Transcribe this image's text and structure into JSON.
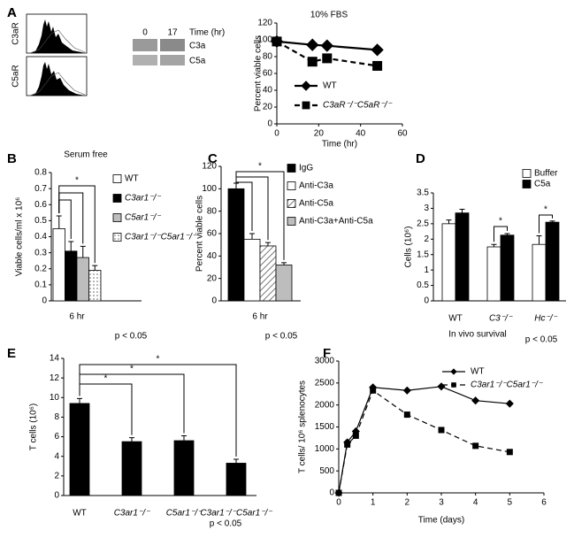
{
  "panel_a": {
    "panel": "A",
    "flow_labels": [
      "C3aR",
      "C5aR"
    ],
    "blot_times": [
      "0",
      "17"
    ],
    "blot_time_label": "Time (hr)",
    "blot_rows": [
      "C3a",
      "C5a"
    ]
  },
  "chart_data": [
    {
      "type": "line",
      "panel": "A",
      "title": "10% FBS",
      "x_label": "Time (hr)",
      "y_label": "Percent viable cells",
      "x": [
        0,
        17,
        24,
        48
      ],
      "series": [
        {
          "name": "WT",
          "color": "#000000",
          "marker": "diamond",
          "dashed": false,
          "values": [
            98,
            94,
            93,
            88
          ]
        },
        {
          "name": "C3aR⁻/⁻C5aR⁻/⁻",
          "color": "#000000",
          "marker": "square",
          "dashed": true,
          "values": [
            98,
            74,
            78,
            69
          ]
        }
      ],
      "xlim": [
        0,
        60
      ],
      "xticks": [
        0,
        20,
        40,
        60
      ],
      "ylim": [
        0,
        120
      ],
      "yticks": [
        0,
        20,
        40,
        60,
        80,
        100,
        120
      ]
    },
    {
      "type": "bar",
      "panel": "B",
      "title": "Serum free",
      "x_label": "6 hr",
      "y_label": "Viable cells/ml x 10⁶",
      "note": "p < 0.05",
      "annotations": [
        "*"
      ],
      "series": [
        {
          "name": "WT",
          "color": "#ffffff",
          "pattern": null,
          "values": [
            0.45
          ],
          "errors": [
            0.08
          ]
        },
        {
          "name": "C3ar1⁻/⁻",
          "color": "#000000",
          "pattern": null,
          "values": [
            0.31
          ],
          "errors": [
            0.06
          ]
        },
        {
          "name": "C5ar1⁻/⁻",
          "color": "#bdbdbd",
          "pattern": null,
          "values": [
            0.27
          ],
          "errors": [
            0.07
          ]
        },
        {
          "name": "C3ar1⁻/⁻C5ar1⁻/⁻",
          "color": "#ffffff",
          "pattern": "dots",
          "values": [
            0.19
          ],
          "errors": [
            0.03
          ]
        }
      ],
      "ylim": [
        0,
        0.8
      ],
      "yticks": [
        0,
        0.1,
        0.2,
        0.3,
        0.4,
        0.5,
        0.6,
        0.7,
        0.8
      ]
    },
    {
      "type": "bar",
      "panel": "C",
      "x_label": "6 hr",
      "y_label": "Percent viable cells",
      "note": "p < 0.05",
      "annotations": [
        "*"
      ],
      "series": [
        {
          "name": "IgG",
          "color": "#000000",
          "pattern": null,
          "values": [
            100
          ],
          "errors": [
            5
          ]
        },
        {
          "name": "Anti-C3a",
          "color": "#ffffff",
          "pattern": null,
          "values": [
            55
          ],
          "errors": [
            5
          ]
        },
        {
          "name": "Anti-C5a",
          "color": "#ffffff",
          "pattern": "hatch",
          "values": [
            49
          ],
          "errors": [
            3
          ]
        },
        {
          "name": "Anti-C3a+Anti-C5a",
          "color": "#bdbdbd",
          "pattern": null,
          "values": [
            32
          ],
          "errors": [
            2
          ]
        }
      ],
      "ylim": [
        0,
        120
      ],
      "yticks": [
        0,
        20,
        40,
        60,
        80,
        100,
        120
      ]
    },
    {
      "type": "bar",
      "panel": "D",
      "x_label": "In vivo survival",
      "y_label": "Cells (10⁶)",
      "note": "p < 0.05",
      "annotations": [
        "*",
        "*"
      ],
      "categories": [
        "WT",
        "C3⁻/⁻",
        "Hc⁻/⁻"
      ],
      "series": [
        {
          "name": "Buffer",
          "color": "#ffffff",
          "pattern": null,
          "values": [
            2.5,
            1.75,
            1.83
          ],
          "errors": [
            0.12,
            0.08,
            0.28
          ]
        },
        {
          "name": "C5a",
          "color": "#000000",
          "pattern": null,
          "values": [
            2.85,
            2.13,
            2.55
          ],
          "errors": [
            0.12,
            0.05,
            0.04
          ]
        }
      ],
      "ylim": [
        0,
        3.5
      ],
      "yticks": [
        0,
        0.5,
        1,
        1.5,
        2,
        2.5,
        3,
        3.5
      ]
    },
    {
      "type": "bar",
      "panel": "E",
      "y_label": "T cells (10⁶)",
      "note": "p < 0.05",
      "annotations": [
        "*",
        "*",
        "*"
      ],
      "categories": [
        "WT",
        "C3ar1⁻/⁻",
        "C5ar1⁻/⁻",
        "C3ar1⁻/⁻C5ar1⁻/⁻"
      ],
      "series": [
        {
          "color": "#000000",
          "pattern": null,
          "values": [
            9.4,
            5.5,
            5.6,
            3.3
          ],
          "errors": [
            0.5,
            0.4,
            0.5,
            0.4
          ]
        }
      ],
      "ylim": [
        0,
        14
      ],
      "yticks": [
        0,
        2,
        4,
        6,
        8,
        10,
        12,
        14
      ]
    },
    {
      "type": "line",
      "panel": "F",
      "x_label": "Time (days)",
      "y_label": "T cells/ 10⁶ splenocytes",
      "x": [
        0,
        0.25,
        0.5,
        1,
        2,
        3,
        4,
        5
      ],
      "series": [
        {
          "name": "WT",
          "color": "#000000",
          "marker": "diamond",
          "dashed": false,
          "values": [
            0,
            1150,
            1400,
            2400,
            2330,
            2420,
            2100,
            2030
          ]
        },
        {
          "name": "C3ar1⁻/⁻C5ar1⁻/⁻",
          "color": "#000000",
          "marker": "square",
          "dashed": true,
          "values": [
            0,
            1100,
            1300,
            2330,
            1780,
            1430,
            1070,
            930
          ]
        }
      ],
      "xlim": [
        0,
        6
      ],
      "xticks": [
        0,
        1,
        2,
        3,
        4,
        5,
        6
      ],
      "ylim": [
        0,
        3000
      ],
      "yticks": [
        0,
        500,
        1000,
        1500,
        2000,
        2500,
        3000
      ]
    }
  ]
}
